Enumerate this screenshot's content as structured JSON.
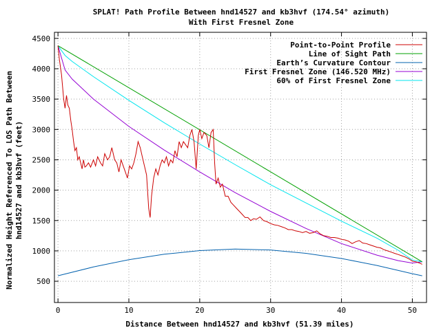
{
  "chart_data": {
    "type": "line",
    "title": "SPLAT! Path Profile Between hnd14527 and kb3hvf (174.54° azimuth)",
    "subtitle": "With First Fresnel Zone",
    "xlabel": "Distance Between hnd14527 and kb3hvf (51.39 miles)",
    "ylabel": [
      "Normalized Height Referenced To LOS Path Between",
      "hnd14527 and kb3hvf (feet)"
    ],
    "xlim": [
      -0.5,
      52
    ],
    "ylim": [
      150,
      4600
    ],
    "x_ticks": [
      0,
      10,
      20,
      30,
      40,
      50
    ],
    "y_ticks": [
      500,
      1000,
      1500,
      2000,
      2500,
      3000,
      3500,
      4000,
      4500
    ],
    "grid": true,
    "legend_position": "top-right",
    "series": [
      {
        "name": "Point-to-Point Profile",
        "color": "#cc0000",
        "points": [
          [
            0,
            4380
          ],
          [
            0.2,
            4150
          ],
          [
            0.5,
            3900
          ],
          [
            0.8,
            3500
          ],
          [
            1.0,
            3350
          ],
          [
            1.2,
            3560
          ],
          [
            1.4,
            3400
          ],
          [
            1.6,
            3350
          ],
          [
            1.8,
            3150
          ],
          [
            2.0,
            3000
          ],
          [
            2.2,
            2800
          ],
          [
            2.4,
            2650
          ],
          [
            2.6,
            2700
          ],
          [
            2.8,
            2500
          ],
          [
            3.0,
            2550
          ],
          [
            3.2,
            2450
          ],
          [
            3.4,
            2350
          ],
          [
            3.6,
            2500
          ],
          [
            3.8,
            2380
          ],
          [
            4.0,
            2400
          ],
          [
            4.3,
            2450
          ],
          [
            4.6,
            2380
          ],
          [
            5.0,
            2500
          ],
          [
            5.3,
            2400
          ],
          [
            5.6,
            2550
          ],
          [
            6.0,
            2450
          ],
          [
            6.3,
            2400
          ],
          [
            6.6,
            2600
          ],
          [
            7.0,
            2500
          ],
          [
            7.3,
            2550
          ],
          [
            7.6,
            2700
          ],
          [
            8.0,
            2500
          ],
          [
            8.3,
            2450
          ],
          [
            8.6,
            2300
          ],
          [
            8.9,
            2500
          ],
          [
            9.2,
            2400
          ],
          [
            9.5,
            2300
          ],
          [
            9.8,
            2200
          ],
          [
            10.1,
            2400
          ],
          [
            10.4,
            2350
          ],
          [
            10.7,
            2450
          ],
          [
            11.0,
            2600
          ],
          [
            11.3,
            2800
          ],
          [
            11.6,
            2700
          ],
          [
            11.9,
            2550
          ],
          [
            12.2,
            2400
          ],
          [
            12.5,
            2250
          ],
          [
            12.8,
            1700
          ],
          [
            13.0,
            1550
          ],
          [
            13.2,
            1900
          ],
          [
            13.5,
            2200
          ],
          [
            13.8,
            2350
          ],
          [
            14.1,
            2250
          ],
          [
            14.4,
            2400
          ],
          [
            14.7,
            2500
          ],
          [
            15.0,
            2450
          ],
          [
            15.3,
            2550
          ],
          [
            15.6,
            2400
          ],
          [
            15.9,
            2500
          ],
          [
            16.2,
            2450
          ],
          [
            16.5,
            2650
          ],
          [
            16.8,
            2550
          ],
          [
            17.1,
            2800
          ],
          [
            17.4,
            2700
          ],
          [
            17.7,
            2800
          ],
          [
            18.0,
            2750
          ],
          [
            18.3,
            2700
          ],
          [
            18.6,
            2900
          ],
          [
            18.9,
            3000
          ],
          [
            19.2,
            2800
          ],
          [
            19.5,
            2350
          ],
          [
            19.8,
            2900
          ],
          [
            20.0,
            3000
          ],
          [
            20.3,
            2850
          ],
          [
            20.6,
            2950
          ],
          [
            21.0,
            2900
          ],
          [
            21.3,
            2700
          ],
          [
            21.6,
            2950
          ],
          [
            21.9,
            3000
          ],
          [
            22.1,
            2450
          ],
          [
            22.3,
            2100
          ],
          [
            22.6,
            2200
          ],
          [
            22.9,
            2050
          ],
          [
            23.2,
            2100
          ],
          [
            23.6,
            1900
          ],
          [
            24.0,
            1900
          ],
          [
            24.4,
            1800
          ],
          [
            24.8,
            1750
          ],
          [
            25.2,
            1700
          ],
          [
            25.6,
            1650
          ],
          [
            26.0,
            1600
          ],
          [
            26.4,
            1550
          ],
          [
            26.8,
            1550
          ],
          [
            27.2,
            1500
          ],
          [
            27.6,
            1530
          ],
          [
            28.0,
            1520
          ],
          [
            28.5,
            1560
          ],
          [
            29.0,
            1500
          ],
          [
            29.5,
            1480
          ],
          [
            30.0,
            1450
          ],
          [
            30.5,
            1430
          ],
          [
            31.0,
            1420
          ],
          [
            31.5,
            1400
          ],
          [
            32.0,
            1380
          ],
          [
            32.5,
            1350
          ],
          [
            33.0,
            1350
          ],
          [
            33.5,
            1330
          ],
          [
            34.0,
            1320
          ],
          [
            34.5,
            1300
          ],
          [
            35.0,
            1320
          ],
          [
            35.5,
            1290
          ],
          [
            36.0,
            1300
          ],
          [
            36.5,
            1330
          ],
          [
            37.0,
            1280
          ],
          [
            37.5,
            1250
          ],
          [
            38.0,
            1240
          ],
          [
            38.5,
            1220
          ],
          [
            39.0,
            1220
          ],
          [
            39.5,
            1210
          ],
          [
            40.0,
            1190
          ],
          [
            40.5,
            1180
          ],
          [
            41.0,
            1160
          ],
          [
            41.5,
            1120
          ],
          [
            42.0,
            1150
          ],
          [
            42.5,
            1170
          ],
          [
            43.0,
            1130
          ],
          [
            43.5,
            1120
          ],
          [
            44.0,
            1100
          ],
          [
            44.5,
            1080
          ],
          [
            45.0,
            1060
          ],
          [
            45.5,
            1050
          ],
          [
            46.0,
            1020
          ],
          [
            46.5,
            1000
          ],
          [
            47.0,
            980
          ],
          [
            47.5,
            960
          ],
          [
            48.0,
            940
          ],
          [
            48.5,
            920
          ],
          [
            49.0,
            900
          ],
          [
            49.5,
            870
          ],
          [
            50.0,
            830
          ],
          [
            50.5,
            820
          ],
          [
            51.0,
            800
          ],
          [
            51.39,
            780
          ]
        ]
      },
      {
        "name": "Line of Sight Path",
        "color": "#00a000",
        "points": [
          [
            0,
            4380
          ],
          [
            51.39,
            820
          ]
        ]
      },
      {
        "name": "Earth’s Curvature Contour",
        "color": "#0060ad",
        "points": [
          [
            0,
            590
          ],
          [
            5,
            735
          ],
          [
            10,
            855
          ],
          [
            15,
            945
          ],
          [
            20,
            1005
          ],
          [
            25,
            1030
          ],
          [
            30,
            1015
          ],
          [
            35,
            960
          ],
          [
            40,
            875
          ],
          [
            45,
            760
          ],
          [
            50,
            625
          ],
          [
            51.39,
            590
          ]
        ]
      },
      {
        "name": "First Fresnel Zone (146.520 MHz)",
        "color": "#9400d3",
        "points": [
          [
            0,
            4380
          ],
          [
            1,
            3980
          ],
          [
            2,
            3830
          ],
          [
            5,
            3500
          ],
          [
            10,
            3050
          ],
          [
            15,
            2660
          ],
          [
            20,
            2300
          ],
          [
            25,
            1960
          ],
          [
            30,
            1650
          ],
          [
            35,
            1370
          ],
          [
            40,
            1120
          ],
          [
            45,
            930
          ],
          [
            48,
            840
          ],
          [
            50,
            800
          ],
          [
            51.39,
            820
          ]
        ]
      },
      {
        "name": "60% of First Fresnel Zone",
        "color": "#00e5ee",
        "points": [
          [
            0,
            4380
          ],
          [
            1,
            4220
          ],
          [
            2,
            4120
          ],
          [
            5,
            3870
          ],
          [
            10,
            3480
          ],
          [
            15,
            3110
          ],
          [
            20,
            2760
          ],
          [
            25,
            2420
          ],
          [
            30,
            2090
          ],
          [
            35,
            1790
          ],
          [
            40,
            1490
          ],
          [
            45,
            1210
          ],
          [
            48,
            1010
          ],
          [
            50,
            850
          ],
          [
            51.39,
            820
          ]
        ]
      }
    ]
  }
}
